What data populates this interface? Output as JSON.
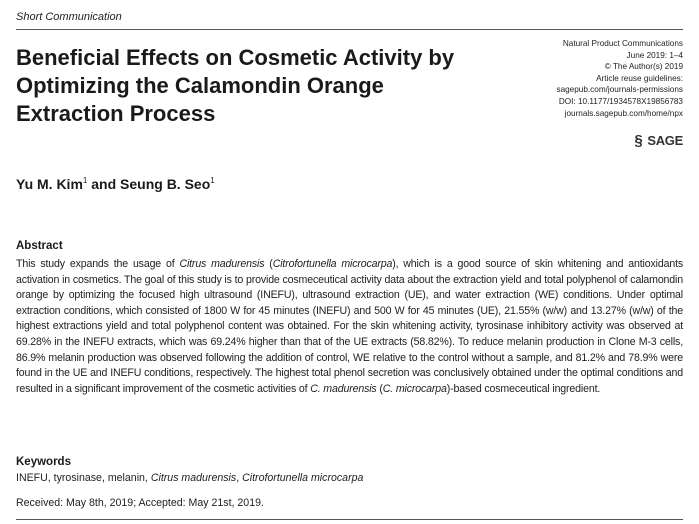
{
  "header": {
    "section_label": "Short Communication"
  },
  "title": "Beneficial Effects on Cosmetic Activity by Optimizing the Calamondin Orange Extraction Process",
  "meta": {
    "journal": "Natural Product Communications",
    "issue": "June 2019: 1–4",
    "copyright": "© The Author(s) 2019",
    "reuse": "Article reuse guidelines:",
    "permissions_url": "sagepub.com/journals-permissions",
    "doi": "DOI: 10.1177/1934578X19856783",
    "homepage": "journals.sagepub.com/home/npx",
    "publisher_logo": "SAGE",
    "publisher_icon": "sage-s-mark-icon"
  },
  "authors": {
    "author1": "Yu M. Kim",
    "author1_aff": "1",
    "joiner": " and ",
    "author2": "Seung B. Seo",
    "author2_aff": "1"
  },
  "abstract": {
    "heading": "Abstract",
    "p1": "This study expands the usage of ",
    "species": "Citrus madurensis",
    "p2": " (",
    "synonym": "Citrofortunella microcarpa",
    "p3": "), which is a good source of skin whitening and antioxidants activation in cosmetics. The goal of this study is to provide cosmeceutical activity data about the extraction yield and total polyphenol of calamondin orange by optimizing the focused high ultrasound (INEFU), ultrasound extraction (UE), and water extraction (WE) conditions. Under optimal extraction conditions, which consisted of 1800 W for 45 minutes (INEFU) and 500 W for 45 minutes (UE), 21.55% (w/w) and 13.27% (w/w) of the highest extractions yield and total polyphenol content was obtained. For the skin whitening activity, tyrosinase inhibitory activity was observed at 69.28% in the INEFU extracts, which was 69.24% higher than that of the UE extracts (58.82%). To reduce melanin production in Clone M-3 cells, 86.9% melanin production was observed following the addition of control, WE relative to the control without a sample, and 81.2% and 78.9% were found in the UE and INEFU conditions, respectively. The highest total phenol secretion was conclusively obtained under the optimal conditions and resulted in a significant improvement of the cosmetic activities of ",
    "species_short": "C. madurensis",
    "p4": " (",
    "synonym_short": "C. microcarpa",
    "p5": ")-based cosmeceutical ingredient."
  },
  "keywords": {
    "heading": "Keywords",
    "plain": "INEFU, tyrosinase, melanin, ",
    "italic1": "Citrus madurensis",
    "sep": ",  ",
    "italic2": "Citrofortunella microcarpa"
  },
  "received": "Received: May 8th, 2019; Accepted: May 21st, 2019."
}
